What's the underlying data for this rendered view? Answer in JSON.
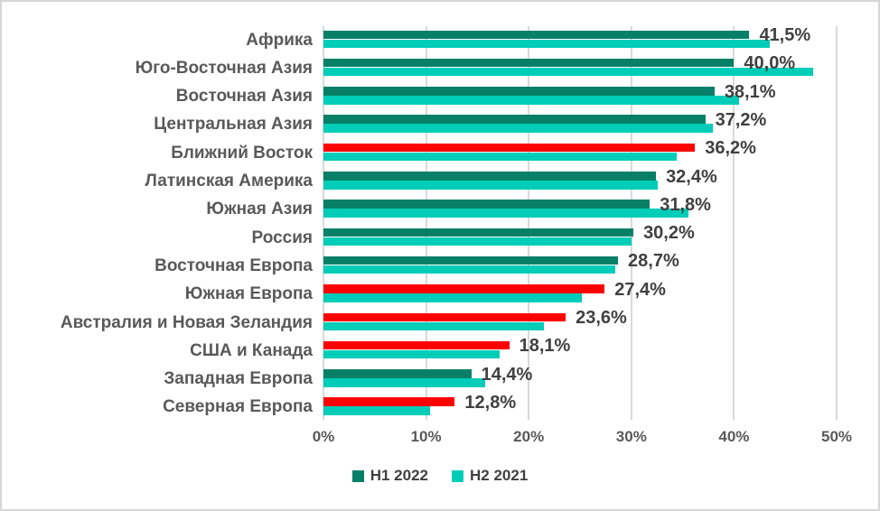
{
  "chart_data": {
    "type": "bar",
    "orientation": "horizontal",
    "title": "",
    "xlabel": "",
    "ylabel": "",
    "xlim": [
      0,
      50
    ],
    "x_ticks": [
      {
        "label": "0%",
        "value": 0
      },
      {
        "label": "10%",
        "value": 10
      },
      {
        "label": "20%",
        "value": 20
      },
      {
        "label": "30%",
        "value": 30
      },
      {
        "label": "40%",
        "value": 40
      },
      {
        "label": "50%",
        "value": 50
      }
    ],
    "grid": true,
    "legend_position": "bottom",
    "categories": [
      "Африка",
      "Юго-Восточная Азия",
      "Восточная Азия",
      "Центральная Азия",
      "Ближний Восток",
      "Латинская Америка",
      "Южная Азия",
      "Россия",
      "Восточная Европа",
      "Южная Европа",
      "Австралия и Новая Зеландия",
      "США и Канада",
      "Западная Европа",
      "Северная Европа"
    ],
    "series": [
      {
        "name": "H1 2022",
        "values": [
          41.5,
          40.0,
          38.1,
          37.2,
          36.2,
          32.4,
          31.8,
          30.2,
          28.7,
          27.4,
          23.6,
          18.1,
          14.4,
          12.8
        ],
        "default_color": "#088068",
        "bar_colors": [
          "#088068",
          "#088068",
          "#088068",
          "#088068",
          "#ff0000",
          "#088068",
          "#088068",
          "#088068",
          "#088068",
          "#ff0000",
          "#ff0000",
          "#ff0000",
          "#088068",
          "#ff0000"
        ],
        "data_labels": [
          "41,5%",
          "40,0%",
          "38,1%",
          "37,2%",
          "36,2%",
          "32,4%",
          "31,8%",
          "30,2%",
          "28,7%",
          "27,4%",
          "23,6%",
          "18,1%",
          "14,4%",
          "12,8%"
        ]
      },
      {
        "name": "H2 2021",
        "values": [
          43.5,
          47.7,
          40.5,
          37.9,
          34.4,
          32.6,
          35.6,
          30.0,
          28.4,
          25.2,
          21.5,
          17.2,
          15.8,
          10.4
        ],
        "default_color": "#00cdb8"
      }
    ]
  },
  "legend": {
    "items": [
      {
        "label": "H1 2022",
        "color": "#088068"
      },
      {
        "label": "H2 2021",
        "color": "#00cdb8"
      }
    ]
  },
  "colors": {
    "h1_teal": "#088068",
    "h1_highlight_red": "#ff0000",
    "h2_cyan": "#00cdb8",
    "gridline": "#d9d9d9",
    "category_text": "#595959",
    "value_text": "#404040",
    "frame_border": "#d6d6d6"
  }
}
